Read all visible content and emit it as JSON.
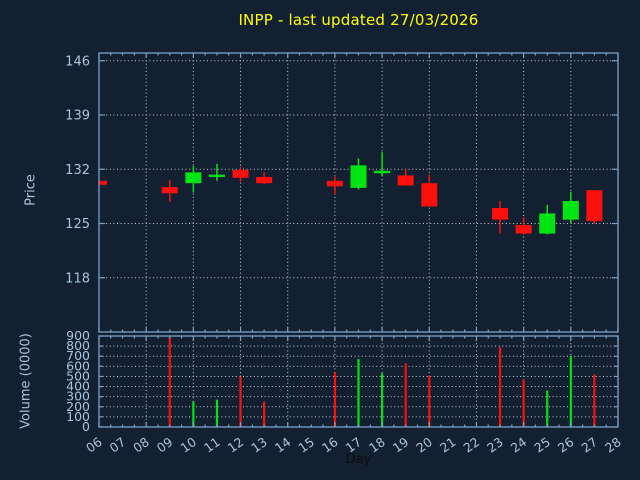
{
  "title": {
    "text": "INPP - last updated 27/03/2026"
  },
  "chart_data": {
    "type": "candlestick",
    "title": "INPP - last updated 27/03/2026",
    "xlabel": "Day",
    "x_tick_labels": [
      "06",
      "07",
      "08",
      "09",
      "10",
      "11",
      "12",
      "13",
      "14",
      "15",
      "16",
      "17",
      "18",
      "19",
      "20",
      "21",
      "22",
      "23",
      "24",
      "25",
      "26",
      "27",
      "28"
    ],
    "x_range": [
      6,
      28
    ],
    "grid": "dotted",
    "price_panel": {
      "ylabel": "Price",
      "yticks": [
        146,
        139,
        132,
        125,
        118
      ],
      "yrange": [
        111,
        147
      ]
    },
    "volume_panel": {
      "ylabel": "Volume (0000)",
      "yticks": [
        900,
        800,
        700,
        600,
        500,
        400,
        300,
        200,
        100,
        0
      ],
      "yrange": [
        0,
        900
      ]
    },
    "candles": [
      {
        "day": 6,
        "open": 130.5,
        "high": 130.5,
        "low": 130.0,
        "close": 130.0,
        "dir": "down",
        "volume": null
      },
      {
        "day": 9,
        "open": 129.7,
        "high": 130.6,
        "low": 127.8,
        "close": 128.9,
        "dir": "down",
        "volume": 890
      },
      {
        "day": 10,
        "open": 130.2,
        "high": 132.4,
        "low": 129.0,
        "close": 131.6,
        "dir": "up",
        "volume": 250
      },
      {
        "day": 11,
        "open": 131.3,
        "high": 132.7,
        "low": 130.5,
        "close": 131.3,
        "dir": "up",
        "volume": 270
      },
      {
        "day": 12,
        "open": 131.9,
        "high": 132.3,
        "low": 130.4,
        "close": 130.9,
        "dir": "down",
        "volume": 500
      },
      {
        "day": 13,
        "open": 131.0,
        "high": 131.6,
        "low": 130.1,
        "close": 130.2,
        "dir": "down",
        "volume": 250
      },
      {
        "day": 16,
        "open": 130.5,
        "high": 131.0,
        "low": 128.8,
        "close": 129.8,
        "dir": "down",
        "volume": 540
      },
      {
        "day": 17,
        "open": 129.6,
        "high": 133.4,
        "low": 129.4,
        "close": 132.5,
        "dir": "up",
        "volume": 670
      },
      {
        "day": 18,
        "open": 131.8,
        "high": 134.2,
        "low": 131.2,
        "close": 131.8,
        "dir": "up",
        "volume": 530
      },
      {
        "day": 19,
        "open": 131.2,
        "high": 132.0,
        "low": 129.9,
        "close": 129.9,
        "dir": "down",
        "volume": 630
      },
      {
        "day": 20,
        "open": 130.2,
        "high": 131.3,
        "low": 127.2,
        "close": 127.2,
        "dir": "down",
        "volume": 510
      },
      {
        "day": 23,
        "open": 127.0,
        "high": 127.9,
        "low": 123.7,
        "close": 125.5,
        "dir": "down",
        "volume": 790
      },
      {
        "day": 24,
        "open": 124.8,
        "high": 125.8,
        "low": 123.6,
        "close": 123.7,
        "dir": "down",
        "volume": 470
      },
      {
        "day": 25,
        "open": 123.7,
        "high": 127.4,
        "low": 123.6,
        "close": 126.3,
        "dir": "up",
        "volume": 360
      },
      {
        "day": 26,
        "open": 125.5,
        "high": 129.1,
        "low": 125.1,
        "close": 127.9,
        "dir": "up",
        "volume": 700
      },
      {
        "day": 27,
        "open": 129.3,
        "high": 129.3,
        "low": 124.9,
        "close": 125.3,
        "dir": "down",
        "volume": 520
      }
    ],
    "colors": {
      "background": "#132031",
      "up": "#00e414",
      "down": "#fb100d",
      "frame": "#7aa1c7",
      "grid": "#c7ced8",
      "tick_text": "#a9c3de",
      "title_text": "#ffff00",
      "xlabel_text": "#0e0e0e"
    }
  }
}
